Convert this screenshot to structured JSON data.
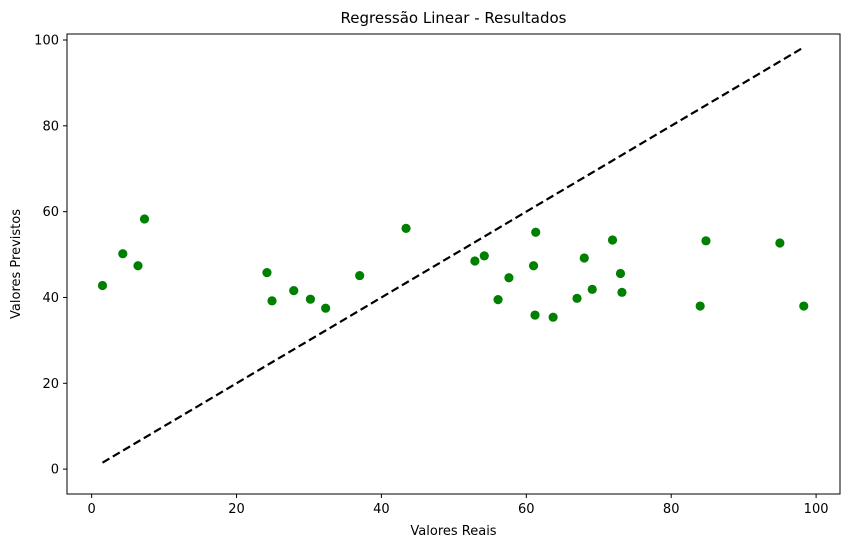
{
  "chart_data": {
    "type": "scatter",
    "title": "Regressão Linear - Resultados",
    "xlabel": "Valores Reais",
    "ylabel": "Valores Previstos",
    "xlim": [
      -3.4,
      103.3
    ],
    "ylim": [
      -5.8,
      101.4
    ],
    "x_ticks": [
      0,
      20,
      40,
      60,
      80,
      100
    ],
    "y_ticks": [
      0,
      20,
      40,
      60,
      80,
      100
    ],
    "grid": false,
    "point_color": "#008000",
    "line_color": "#000000",
    "reference_line": {
      "x": [
        1.5,
        98.3
      ],
      "y": [
        1.5,
        98.3
      ],
      "style": "dashed"
    },
    "series": [
      {
        "x": [
          1.5,
          4.3,
          6.4,
          7.3,
          24.2,
          24.9,
          27.9,
          30.2,
          32.3,
          37.0,
          43.4,
          52.9,
          54.2,
          56.1,
          57.6,
          61.0,
          61.2,
          61.3,
          63.7,
          67.0,
          68.0,
          69.1,
          71.9,
          73.0,
          73.2,
          84.0,
          84.8,
          95.0,
          98.3
        ],
        "y": [
          42.8,
          50.2,
          47.4,
          58.3,
          45.8,
          39.2,
          41.6,
          39.6,
          37.5,
          45.1,
          56.1,
          48.5,
          49.7,
          39.5,
          44.6,
          47.4,
          35.9,
          55.2,
          35.4,
          39.8,
          49.2,
          41.9,
          53.4,
          45.6,
          41.2,
          38.0,
          53.2,
          52.7,
          38.0
        ]
      }
    ]
  }
}
